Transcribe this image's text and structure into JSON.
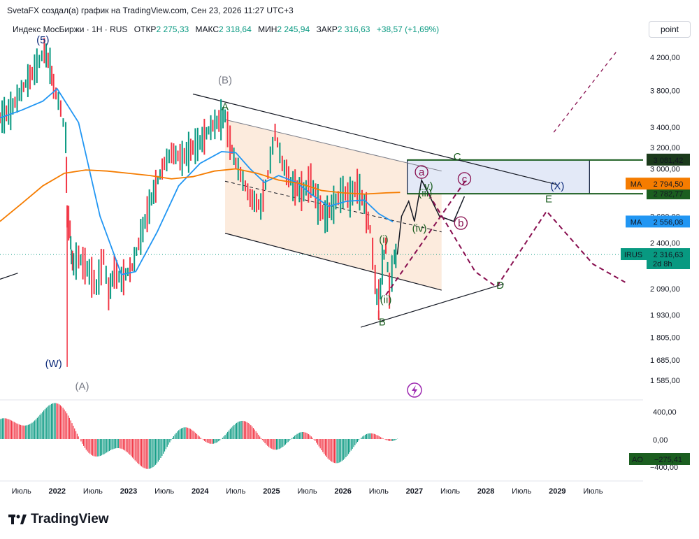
{
  "header": {
    "text": "SvetaFX создал(а) график на TradingView.com, Сен 23, 2026 11:27 UTC+3"
  },
  "symbol": {
    "name": "Индекс МосБиржи · 1Н · RUS",
    "open_label": "ОТКР",
    "open": "2 275,33",
    "high_label": "МАКС",
    "high": "2 318,64",
    "low_label": "МИН",
    "low": "2 245,94",
    "close_label": "ЗАКР",
    "close": "2 316,63",
    "change": "+38,57 (+1,69%)"
  },
  "toolbar": {
    "scale_button": "point"
  },
  "footer": {
    "brand": "TradingView"
  },
  "colors": {
    "up": "#089981",
    "down": "#f23645",
    "ma_fast": "#2196f3",
    "ma_slow": "#f57c00",
    "zone_fill": "#fbe3cf",
    "box_fill": "#e3e9f7",
    "dark_green": "#1b5e20",
    "maroon": "#880e4f",
    "navy": "#0d2a7a"
  },
  "chart_data": {
    "type": "line",
    "title": "",
    "y_scale": "log",
    "ylim": [
      1500,
      4400
    ],
    "y_ticks": [
      4200,
      3800,
      3400,
      3200,
      3000,
      2800,
      2600,
      2400,
      2090,
      1930,
      1805,
      1685,
      1585
    ],
    "y_tick_labels": [
      "4 200,00",
      "3 800,00",
      "3 400,00",
      "3 200,00",
      "3 000,00",
      "2 800,00",
      "2 600,00",
      "2 400,00",
      "2 090,00",
      "1 930,00",
      "1 805,00",
      "1 685,00",
      "1 585,00"
    ],
    "x_ticks": [
      2021.5,
      2022,
      2022.5,
      2023,
      2023.5,
      2024,
      2024.5,
      2025,
      2025.5,
      2026,
      2026.5,
      2027,
      2027.5,
      2028,
      2028.5,
      2029,
      2029.5
    ],
    "x_tick_labels": [
      "Июль",
      "2022",
      "Июль",
      "2023",
      "Июль",
      "2024",
      "Июль",
      "2025",
      "Июль",
      "2026",
      "Июль",
      "2027",
      "Июль",
      "2028",
      "Июль",
      "2029",
      "Июль"
    ],
    "bold_x_ticks": [
      "2022",
      "2023",
      "2024",
      "2025",
      "2026",
      "2027",
      "2028",
      "2029"
    ],
    "xlim": [
      2021.2,
      2030.2
    ],
    "price_path": [
      [
        2021.2,
        3500
      ],
      [
        2021.35,
        3580
      ],
      [
        2021.5,
        3800
      ],
      [
        2021.65,
        4000
      ],
      [
        2021.75,
        4150
      ],
      [
        2021.82,
        4290
      ],
      [
        2021.9,
        4100
      ],
      [
        2021.95,
        3850
      ],
      [
        2022.05,
        3600
      ],
      [
        2022.12,
        3300
      ],
      [
        2022.14,
        2600
      ],
      [
        2022.18,
        2500
      ],
      [
        2022.2,
        2300
      ],
      [
        2022.23,
        2250
      ],
      [
        2022.3,
        2300
      ],
      [
        2022.45,
        2200
      ],
      [
        2022.55,
        2100
      ],
      [
        2022.65,
        2300
      ],
      [
        2022.72,
        2060
      ],
      [
        2022.8,
        2200
      ],
      [
        2022.9,
        2150
      ],
      [
        2023.05,
        2230
      ],
      [
        2023.2,
        2500
      ],
      [
        2023.35,
        2800
      ],
      [
        2023.5,
        3050
      ],
      [
        2023.6,
        3150
      ],
      [
        2023.75,
        3100
      ],
      [
        2023.9,
        3200
      ],
      [
        2024.0,
        3250
      ],
      [
        2024.15,
        3400
      ],
      [
        2024.35,
        3520
      ],
      [
        2024.42,
        3250
      ],
      [
        2024.5,
        3050
      ],
      [
        2024.6,
        2900
      ],
      [
        2024.7,
        2750
      ],
      [
        2024.85,
        2680
      ],
      [
        2024.95,
        2950
      ],
      [
        2025.05,
        3350
      ],
      [
        2025.15,
        3050
      ],
      [
        2025.3,
        2850
      ],
      [
        2025.45,
        2800
      ],
      [
        2025.55,
        2900
      ],
      [
        2025.65,
        2700
      ],
      [
        2025.75,
        2600
      ],
      [
        2025.9,
        2720
      ],
      [
        2026.0,
        2800
      ],
      [
        2026.1,
        2760
      ],
      [
        2026.2,
        2850
      ],
      [
        2026.3,
        2700
      ],
      [
        2026.38,
        2500
      ],
      [
        2026.45,
        2150
      ],
      [
        2026.5,
        1930
      ],
      [
        2026.55,
        2250
      ],
      [
        2026.6,
        2380
      ],
      [
        2026.65,
        2080
      ],
      [
        2026.72,
        2300
      ],
      [
        2026.76,
        2316.63
      ]
    ],
    "series": [
      {
        "name": "MA",
        "last_value_label": "2 556,08",
        "values": [
          [
            2021.2,
            3500
          ],
          [
            2021.5,
            3580
          ],
          [
            2021.8,
            3680
          ],
          [
            2022.0,
            3820
          ],
          [
            2022.3,
            3450
          ],
          [
            2022.6,
            2600
          ],
          [
            2022.9,
            2180
          ],
          [
            2023.1,
            2200
          ],
          [
            2023.4,
            2480
          ],
          [
            2023.7,
            2850
          ],
          [
            2024.0,
            3050
          ],
          [
            2024.3,
            3160
          ],
          [
            2024.5,
            3150
          ],
          [
            2024.7,
            3000
          ],
          [
            2024.9,
            2880
          ],
          [
            2025.1,
            2940
          ],
          [
            2025.35,
            2880
          ],
          [
            2025.55,
            2780
          ],
          [
            2025.8,
            2680
          ],
          [
            2026.05,
            2720
          ],
          [
            2026.3,
            2730
          ],
          [
            2026.5,
            2620
          ],
          [
            2026.7,
            2556
          ]
        ]
      },
      {
        "name": "MA",
        "last_value_label": "2 794,50",
        "values": [
          [
            2021.2,
            2560
          ],
          [
            2021.5,
            2700
          ],
          [
            2021.8,
            2850
          ],
          [
            2022.1,
            2960
          ],
          [
            2022.4,
            2990
          ],
          [
            2022.7,
            2980
          ],
          [
            2023.0,
            2960
          ],
          [
            2023.3,
            2940
          ],
          [
            2023.6,
            2910
          ],
          [
            2023.9,
            2930
          ],
          [
            2024.2,
            2980
          ],
          [
            2024.5,
            3000
          ],
          [
            2024.8,
            2960
          ],
          [
            2025.1,
            2900
          ],
          [
            2025.4,
            2870
          ],
          [
            2025.7,
            2810
          ],
          [
            2026.0,
            2790
          ],
          [
            2026.3,
            2780
          ],
          [
            2026.6,
            2790
          ],
          [
            2026.8,
            2794
          ]
        ]
      }
    ],
    "price_labels": {
      "irus_name": "IRUS",
      "irus_price": "2 316,63",
      "irus_time": "2d 8h",
      "box_top": "3 081,42",
      "box_bottom": "2 782,77"
    },
    "wave_labels": [
      {
        "text": "(5)",
        "x": 2021.8,
        "y": 4380,
        "color": "navy"
      },
      {
        "text": "(W)",
        "x": 2021.95,
        "y": 1650,
        "color": "navy"
      },
      {
        "text": "(A)",
        "x": 2022.35,
        "y": 1540,
        "color": "gray"
      },
      {
        "text": "(B)",
        "x": 2024.35,
        "y": 3880,
        "color": "gray"
      },
      {
        "text": "A",
        "x": 2024.35,
        "y": 3580,
        "color": "dark_green"
      },
      {
        "text": "B",
        "x": 2026.55,
        "y": 1870,
        "color": "dark_green"
      },
      {
        "text": "C",
        "x": 2027.6,
        "y": 3080,
        "color": "dark_green"
      },
      {
        "text": "D",
        "x": 2028.2,
        "y": 2090,
        "color": "dark_green"
      },
      {
        "text": "E",
        "x": 2028.88,
        "y": 2710,
        "color": "dark_green"
      },
      {
        "text": "(X)",
        "x": 2029.0,
        "y": 2820,
        "color": "navy"
      },
      {
        "text": "(i)",
        "x": 2026.57,
        "y": 2400,
        "color": "dark_green"
      },
      {
        "text": "(ii)",
        "x": 2026.6,
        "y": 2000,
        "color": "dark_green"
      },
      {
        "text": "(iii)",
        "x": 2027.15,
        "y": 2760,
        "color": "dark_green"
      },
      {
        "text": "(iv)",
        "x": 2027.07,
        "y": 2480,
        "color": "dark_green"
      },
      {
        "text": "v)",
        "x": 2027.2,
        "y": 2820,
        "color": "dark_green"
      },
      {
        "text": "a",
        "x": 2027.1,
        "y": 2940,
        "color": "maroon"
      },
      {
        "text": "b",
        "x": 2027.65,
        "y": 2520,
        "color": "maroon"
      },
      {
        "text": "c",
        "x": 2027.7,
        "y": 2880,
        "color": "maroon"
      }
    ],
    "ao": {
      "name": "AO",
      "value_label": "−275,41",
      "y_tick_labels": [
        "400,00",
        "0,00",
        "−400,00"
      ],
      "ylim": [
        -520,
        520
      ]
    }
  }
}
